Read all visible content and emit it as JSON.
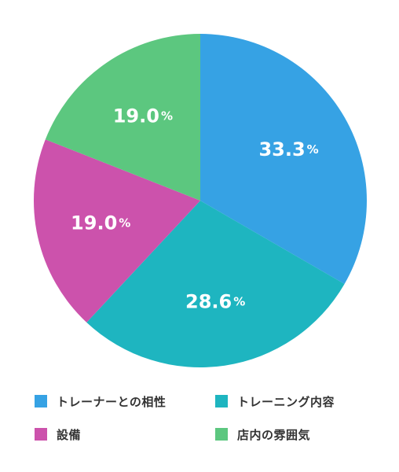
{
  "chart_data": {
    "type": "pie",
    "categories": [
      "トレーナーとの相性",
      "トレーニング内容",
      "設備",
      "店内の雰囲気"
    ],
    "values": [
      33.3,
      28.6,
      19.0,
      19.0
    ],
    "value_labels": [
      "33.3",
      "28.6",
      "19.0",
      "19.0"
    ],
    "unit": "%",
    "colors": [
      "#36A2E4",
      "#1EB5C0",
      "#CC52AC",
      "#5CC77F"
    ],
    "start_angle_deg": 0,
    "direction": "clockwise",
    "legend_position": "bottom"
  }
}
